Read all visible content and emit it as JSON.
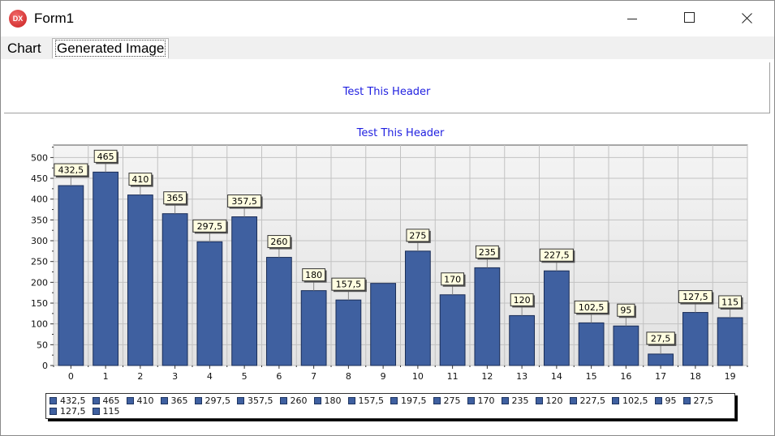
{
  "window": {
    "title": "Form1",
    "icon": "dx-app-icon"
  },
  "tabs": [
    {
      "label": "Chart",
      "selected": false
    },
    {
      "label": "Generated Image",
      "selected": true
    }
  ],
  "header_panel": {
    "text": "Test This Header"
  },
  "colors": {
    "bar": "#3f60a0",
    "bar_border": "#1a2d57",
    "label_bg": "#fffde0",
    "header_text": "#1f1fe0"
  },
  "chart_data": {
    "type": "bar",
    "title": "Test This Header",
    "categories": [
      "0",
      "1",
      "2",
      "3",
      "4",
      "5",
      "6",
      "7",
      "8",
      "9",
      "10",
      "11",
      "12",
      "13",
      "14",
      "15",
      "16",
      "17",
      "18",
      "19"
    ],
    "values": [
      432.5,
      465,
      410,
      365,
      297.5,
      357.5,
      260,
      180,
      157.5,
      197.5,
      275,
      170,
      235,
      120,
      227.5,
      102.5,
      95,
      27.5,
      127.5,
      115
    ],
    "data_labels": [
      "432,5",
      "465",
      "410",
      "365",
      "297,5",
      "357,5",
      "260",
      "180",
      "157,5",
      "",
      "275",
      "170",
      "235",
      "120",
      "227,5",
      "102,5",
      "95",
      "27,5",
      "127,5",
      "115"
    ],
    "y_ticks": [
      "0",
      "50",
      "100",
      "150",
      "200",
      "250",
      "300",
      "350",
      "400",
      "450",
      "500"
    ],
    "ylim": [
      0,
      530
    ],
    "grid": true,
    "legend_position": "bottom",
    "legend_labels": [
      "432,5",
      "465",
      "410",
      "365",
      "297,5",
      "357,5",
      "260",
      "180",
      "157,5",
      "197,5",
      "275",
      "170",
      "235",
      "120",
      "227,5",
      "102,5",
      "95",
      "27,5",
      "127,5",
      "115"
    ]
  }
}
